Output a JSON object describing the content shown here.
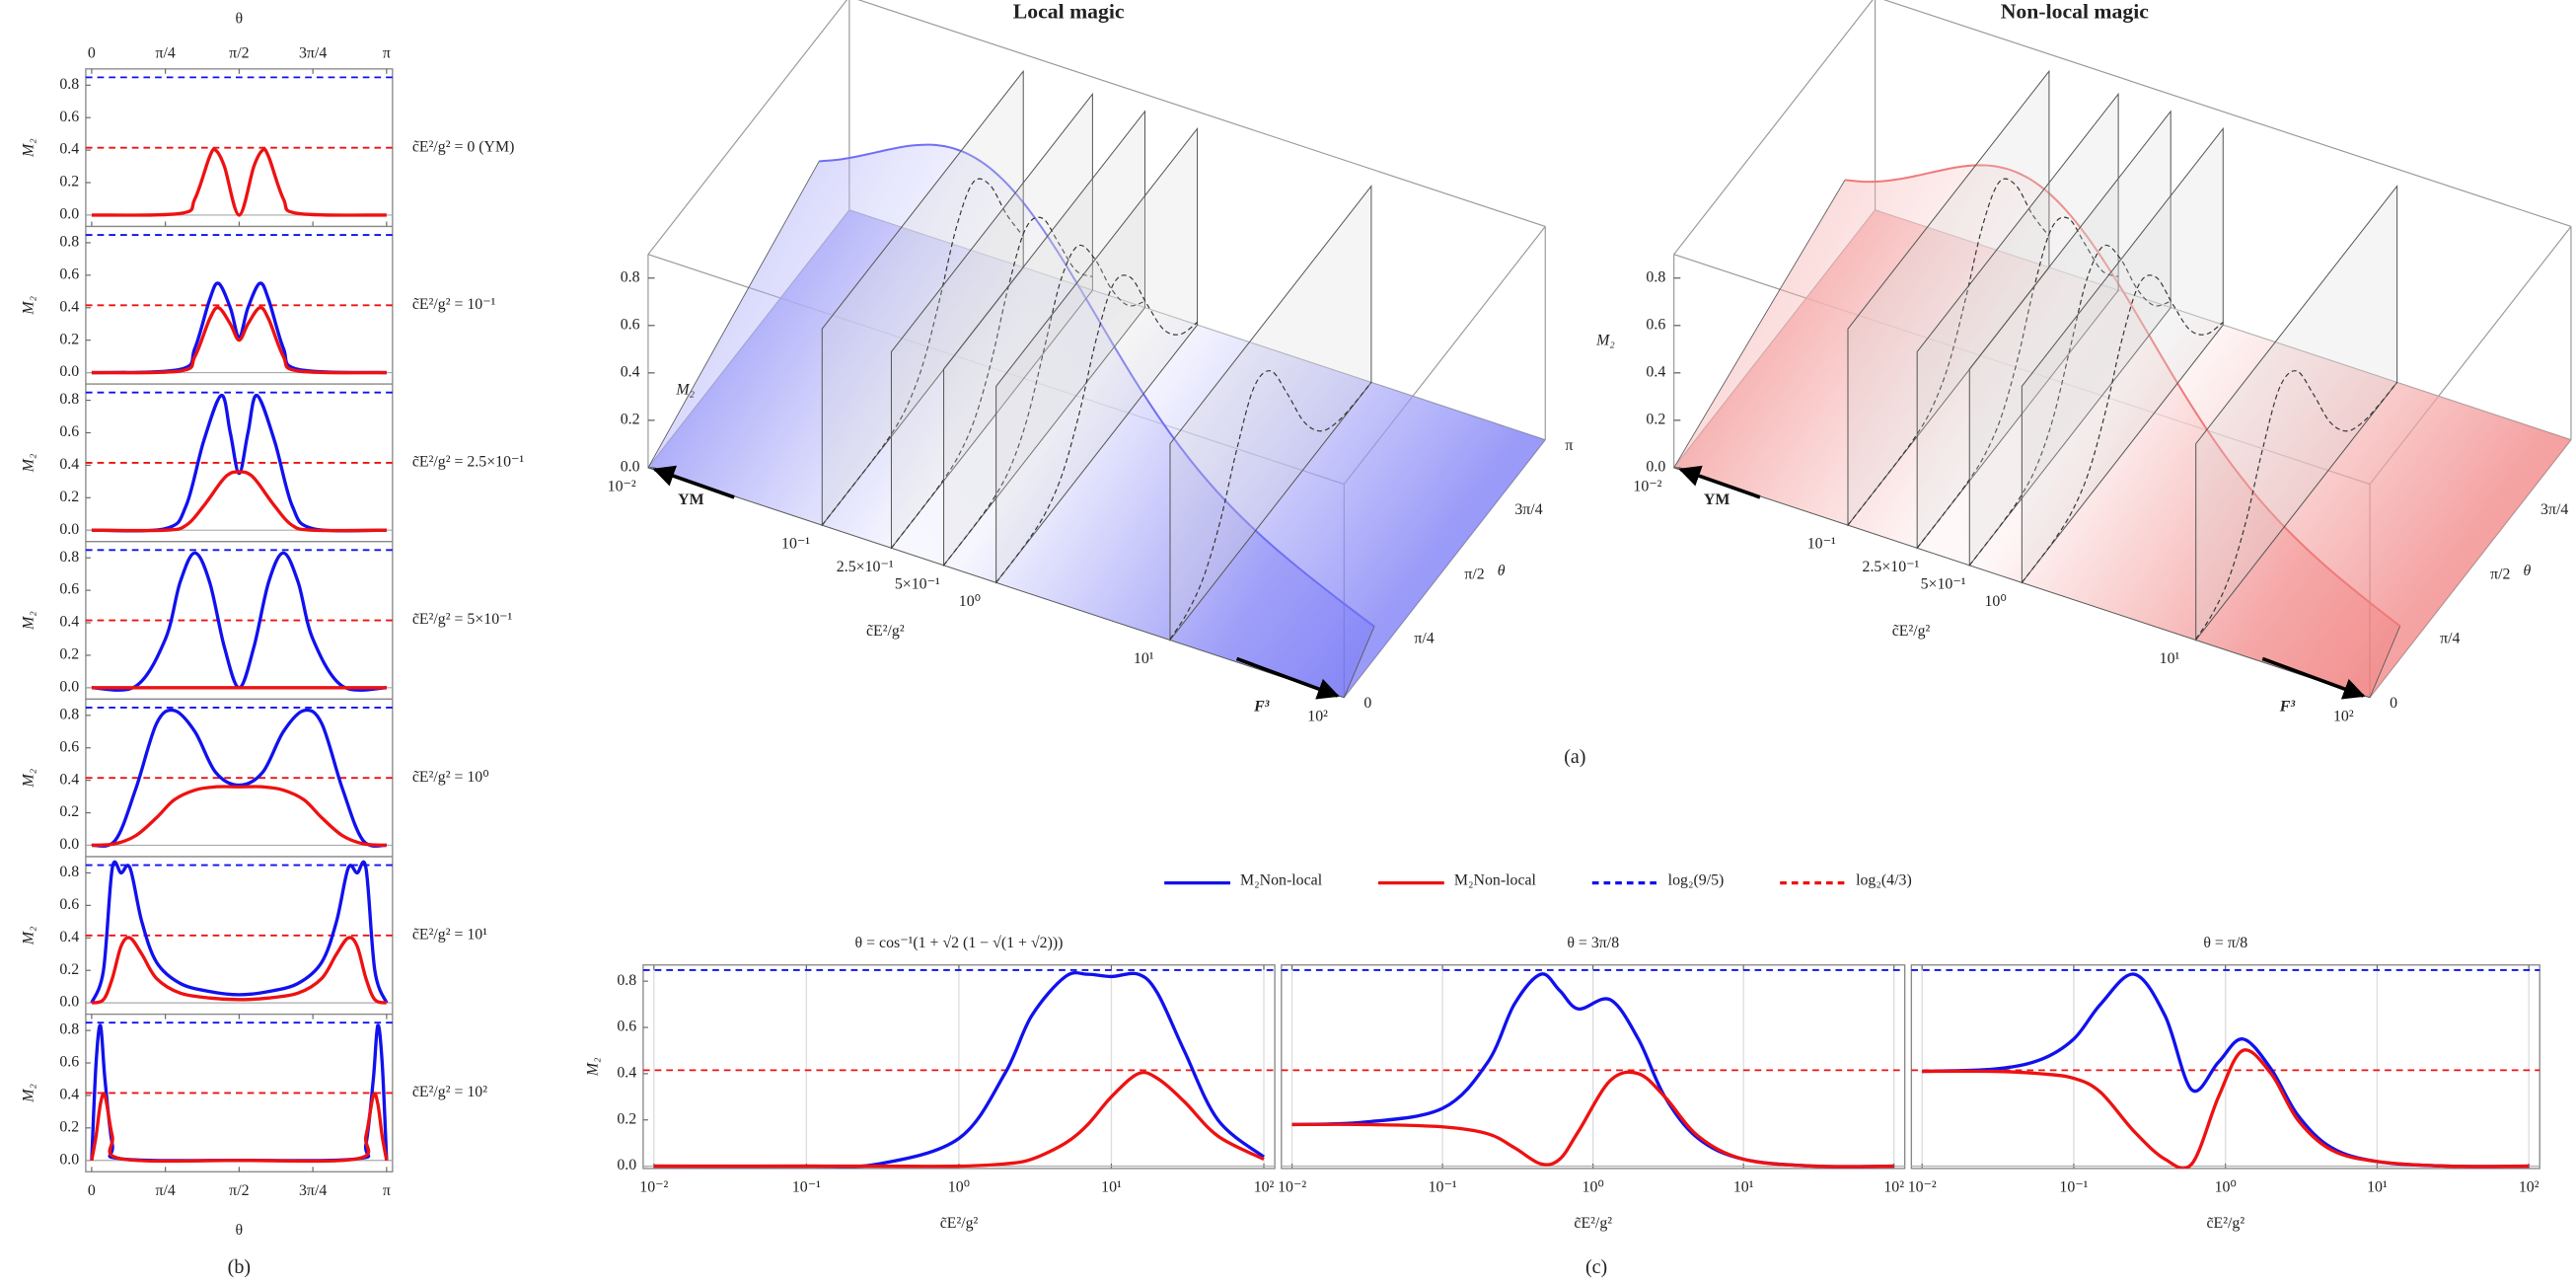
{
  "captions": {
    "a": "(a)",
    "b": "(b)",
    "c": "(c)"
  },
  "panel_a": {
    "charts": [
      {
        "title": "Local magic",
        "color": "#6f6ff5"
      },
      {
        "title": "Non-local magic",
        "color": "#f07a7a"
      }
    ],
    "zlabel": "M₂",
    "zlim": [
      0,
      0.9
    ],
    "zticks": [
      {
        "value": 0,
        "label": "0.0"
      },
      0.2,
      0.4,
      0.6,
      0.8
    ],
    "xlabel": "c̃E²/g²",
    "xscale": "log",
    "xlim": [
      0.01,
      100
    ],
    "xticks": [
      {
        "value": 0.01,
        "label": "10⁻²"
      },
      {
        "value": 0.1,
        "label": "10⁻¹"
      },
      {
        "value": 0.25,
        "label": "2.5×10⁻¹"
      },
      {
        "value": 0.5,
        "label": "5×10⁻¹"
      },
      {
        "value": 1,
        "label": "10⁰"
      },
      {
        "value": 10,
        "label": "10¹"
      },
      {
        "value": 100,
        "label": "10²"
      }
    ],
    "ylabel": "θ",
    "ylim": [
      0,
      1
    ],
    "yticks": [
      0,
      {
        "value": 0.25,
        "label": "π/4"
      },
      {
        "value": 0.5,
        "label": "π/2"
      },
      {
        "value": 0.75,
        "label": "3π/4"
      },
      {
        "value": 1,
        "label": "π"
      }
    ],
    "arrows": [
      "YM",
      "F³"
    ]
  },
  "legend": [
    {
      "label": "M₂Non-local",
      "color": "#1111ee",
      "style": "solid"
    },
    {
      "label": "M₂Non-local",
      "color": "#ee1111",
      "style": "solid"
    },
    {
      "label": "log₂(9/5)",
      "color": "#1111ee",
      "style": "dashed"
    },
    {
      "label": "log₂(4/3)",
      "color": "#ee1111",
      "style": "dashed"
    }
  ],
  "chart_data": [
    {
      "type": "line",
      "annotation": "c̃E²/g² = 0 (YM)",
      "xaxis": "top",
      "xlabel": "θ",
      "xlim": [
        -0.02,
        1.02
      ],
      "xticks": [
        0,
        {
          "value": 0.25,
          "label": "π/4"
        },
        {
          "value": 0.5,
          "label": "π/2"
        },
        {
          "value": 0.75,
          "label": "3π/4"
        },
        {
          "value": 1,
          "label": "π"
        }
      ],
      "ylabel": "M₂",
      "ylim": [
        -0.07,
        0.9
      ],
      "yticks": [
        {
          "value": 0,
          "label": "0.0"
        },
        0.2,
        0.4,
        0.6,
        0.8
      ],
      "hlines": [
        {
          "value": 0.848,
          "color": "#1111ee"
        },
        {
          "value": 0.415,
          "color": "#ee1111"
        }
      ],
      "x": [
        0,
        0.3,
        0.35,
        0.4,
        0.42,
        0.45,
        0.5,
        0.55,
        0.58,
        0.6,
        0.65,
        0.7,
        1
      ],
      "series": [
        {
          "color": "#ee1111",
          "values": [
            0,
            0.01,
            0.1,
            0.36,
            0.4,
            0.3,
            0,
            0.3,
            0.4,
            0.36,
            0.1,
            0.01,
            0
          ]
        }
      ]
    },
    {
      "type": "line",
      "annotation": "c̃E²/g² = 10⁻¹",
      "xlim": [
        -0.02,
        1.02
      ],
      "ylabel": "M₂",
      "ylim": [
        -0.07,
        0.9
      ],
      "yticks": [
        {
          "value": 0,
          "label": "0.0"
        },
        0.2,
        0.4,
        0.6,
        0.8
      ],
      "hlines": [
        {
          "value": 0.848,
          "color": "#1111ee"
        },
        {
          "value": 0.415,
          "color": "#ee1111"
        }
      ],
      "x": [
        0,
        0.3,
        0.35,
        0.4,
        0.43,
        0.47,
        0.5,
        0.53,
        0.57,
        0.6,
        0.65,
        0.7,
        1
      ],
      "series": [
        {
          "color": "#1111ee",
          "values": [
            0,
            0.02,
            0.15,
            0.45,
            0.55,
            0.4,
            0.22,
            0.4,
            0.55,
            0.45,
            0.15,
            0.02,
            0
          ]
        },
        {
          "color": "#ee1111",
          "values": [
            0,
            0.01,
            0.1,
            0.33,
            0.4,
            0.3,
            0.2,
            0.3,
            0.4,
            0.33,
            0.1,
            0.01,
            0
          ]
        }
      ]
    },
    {
      "type": "line",
      "annotation": "c̃E²/g² = 2.5×10⁻¹",
      "xlim": [
        -0.02,
        1.02
      ],
      "ylabel": "M₂",
      "ylim": [
        -0.07,
        0.9
      ],
      "yticks": [
        {
          "value": 0,
          "label": "0.0"
        },
        0.2,
        0.4,
        0.6,
        0.8
      ],
      "hlines": [
        {
          "value": 0.848,
          "color": "#1111ee"
        },
        {
          "value": 0.415,
          "color": "#ee1111"
        }
      ],
      "x": [
        0,
        0.25,
        0.32,
        0.38,
        0.44,
        0.47,
        0.5,
        0.53,
        0.56,
        0.62,
        0.68,
        0.75,
        1
      ],
      "series": [
        {
          "color": "#1111ee",
          "values": [
            0,
            0.01,
            0.15,
            0.55,
            0.83,
            0.6,
            0.35,
            0.6,
            0.83,
            0.55,
            0.15,
            0.01,
            0
          ]
        },
        {
          "color": "#ee1111",
          "values": [
            0,
            0,
            0.03,
            0.15,
            0.3,
            0.35,
            0.36,
            0.35,
            0.3,
            0.15,
            0.03,
            0,
            0
          ]
        }
      ]
    },
    {
      "type": "line",
      "annotation": "c̃E²/g² = 5×10⁻¹",
      "xlim": [
        -0.02,
        1.02
      ],
      "ylabel": "M₂",
      "ylim": [
        -0.07,
        0.9
      ],
      "yticks": [
        {
          "value": 0,
          "label": "0.0"
        },
        0.2,
        0.4,
        0.6,
        0.8
      ],
      "hlines": [
        {
          "value": 0.848,
          "color": "#1111ee"
        },
        {
          "value": 0.415,
          "color": "#ee1111"
        }
      ],
      "x": [
        0,
        0.15,
        0.25,
        0.3,
        0.35,
        0.4,
        0.45,
        0.5,
        0.55,
        0.6,
        0.65,
        0.7,
        0.75,
        0.85,
        1
      ],
      "series": [
        {
          "color": "#1111ee",
          "values": [
            0,
            0.01,
            0.3,
            0.65,
            0.83,
            0.65,
            0.25,
            0,
            0.25,
            0.65,
            0.83,
            0.65,
            0.3,
            0.01,
            0
          ]
        },
        {
          "color": "#ee1111",
          "values": [
            0,
            0,
            0,
            0,
            0,
            0,
            0,
            0,
            0,
            0,
            0,
            0,
            0,
            0,
            0
          ]
        }
      ]
    },
    {
      "type": "line",
      "annotation": "c̃E²/g² = 10⁰",
      "xlim": [
        -0.02,
        1.02
      ],
      "ylabel": "M₂",
      "ylim": [
        -0.07,
        0.9
      ],
      "yticks": [
        {
          "value": 0,
          "label": "0.0"
        },
        0.2,
        0.4,
        0.6,
        0.8
      ],
      "hlines": [
        {
          "value": 0.848,
          "color": "#1111ee"
        },
        {
          "value": 0.415,
          "color": "#ee1111"
        }
      ],
      "x": [
        0,
        0.08,
        0.15,
        0.22,
        0.28,
        0.35,
        0.42,
        0.5,
        0.58,
        0.65,
        0.72,
        0.78,
        0.85,
        0.92,
        1
      ],
      "series": [
        {
          "color": "#1111ee",
          "values": [
            0,
            0.03,
            0.35,
            0.75,
            0.83,
            0.7,
            0.45,
            0.37,
            0.45,
            0.7,
            0.83,
            0.75,
            0.35,
            0.03,
            0
          ]
        },
        {
          "color": "#ee1111",
          "values": [
            0,
            0.01,
            0.06,
            0.17,
            0.28,
            0.34,
            0.36,
            0.36,
            0.36,
            0.34,
            0.28,
            0.17,
            0.06,
            0.01,
            0
          ]
        }
      ]
    },
    {
      "type": "line",
      "annotation": "c̃E²/g² = 10¹",
      "xlim": [
        -0.02,
        1.02
      ],
      "ylabel": "M₂",
      "ylim": [
        -0.07,
        0.9
      ],
      "yticks": [
        {
          "value": 0,
          "label": "0.0"
        },
        0.2,
        0.4,
        0.6,
        0.8
      ],
      "hlines": [
        {
          "value": 0.848,
          "color": "#1111ee"
        },
        {
          "value": 0.415,
          "color": "#ee1111"
        }
      ],
      "x": [
        0,
        0.04,
        0.07,
        0.1,
        0.13,
        0.17,
        0.22,
        0.3,
        0.4,
        0.5,
        0.6,
        0.7,
        0.78,
        0.83,
        0.87,
        0.9,
        0.93,
        0.96,
        1
      ],
      "series": [
        {
          "color": "#1111ee",
          "values": [
            0,
            0.2,
            0.83,
            0.8,
            0.83,
            0.5,
            0.25,
            0.12,
            0.07,
            0.05,
            0.07,
            0.12,
            0.25,
            0.5,
            0.83,
            0.8,
            0.83,
            0.2,
            0
          ]
        },
        {
          "color": "#ee1111",
          "values": [
            0,
            0.02,
            0.15,
            0.35,
            0.4,
            0.3,
            0.15,
            0.06,
            0.03,
            0.02,
            0.03,
            0.06,
            0.15,
            0.3,
            0.4,
            0.35,
            0.15,
            0.02,
            0
          ]
        }
      ]
    },
    {
      "type": "line",
      "annotation": "c̃E²/g² = 10²",
      "xaxis": "bottom",
      "xlabel": "θ",
      "xlim": [
        -0.02,
        1.02
      ],
      "xticks": [
        0,
        {
          "value": 0.25,
          "label": "π/4"
        },
        {
          "value": 0.5,
          "label": "π/2"
        },
        {
          "value": 0.75,
          "label": "3π/4"
        },
        {
          "value": 1,
          "label": "π"
        }
      ],
      "ylabel": "M₂",
      "ylim": [
        -0.07,
        0.9
      ],
      "yticks": [
        {
          "value": 0,
          "label": "0.0"
        },
        0.2,
        0.4,
        0.6,
        0.8
      ],
      "hlines": [
        {
          "value": 0.848,
          "color": "#1111ee"
        },
        {
          "value": 0.415,
          "color": "#ee1111"
        }
      ],
      "x": [
        0,
        0.015,
        0.03,
        0.045,
        0.07,
        0.1,
        0.5,
        0.9,
        0.93,
        0.955,
        0.97,
        0.985,
        1
      ],
      "series": [
        {
          "color": "#1111ee",
          "values": [
            0,
            0.6,
            0.83,
            0.5,
            0.1,
            0.01,
            0,
            0.01,
            0.1,
            0.5,
            0.83,
            0.6,
            0
          ]
        },
        {
          "color": "#ee1111",
          "values": [
            0,
            0.15,
            0.35,
            0.4,
            0.15,
            0.01,
            0,
            0.01,
            0.15,
            0.4,
            0.35,
            0.15,
            0
          ]
        }
      ]
    },
    {
      "type": "line",
      "title": "θ = cos⁻¹(1 + √2 (1 − √(1 + √2)))",
      "xscale": "log",
      "xlim": [
        0.0085,
        118
      ],
      "grid": true,
      "xticks": [
        {
          "value": 0.01,
          "label": "10⁻²"
        },
        {
          "value": 0.1,
          "label": "10⁻¹"
        },
        {
          "value": 1,
          "label": "10⁰"
        },
        {
          "value": 10,
          "label": "10¹"
        },
        {
          "value": 100,
          "label": "10²"
        }
      ],
      "xlabel": "c̃E²/g²",
      "ylabel": "M₂",
      "ylim": [
        -0.01,
        0.87
      ],
      "yticks": [
        {
          "value": 0,
          "label": "0.0"
        },
        0.2,
        0.4,
        0.6,
        0.8
      ],
      "hlines": [
        {
          "value": 0.848,
          "color": "#1111ee"
        },
        {
          "value": 0.415,
          "color": "#ee1111"
        }
      ],
      "x": [
        0.01,
        0.1,
        0.3,
        1,
        2,
        3,
        5,
        7,
        10,
        15,
        20,
        30,
        50,
        100
      ],
      "series": [
        {
          "color": "#1111ee",
          "values": [
            0,
            0,
            0.01,
            0.12,
            0.4,
            0.65,
            0.82,
            0.83,
            0.82,
            0.83,
            0.75,
            0.5,
            0.2,
            0.04
          ]
        },
        {
          "color": "#ee1111",
          "values": [
            0,
            0,
            0,
            0,
            0.01,
            0.03,
            0.1,
            0.18,
            0.3,
            0.4,
            0.38,
            0.28,
            0.13,
            0.03
          ]
        }
      ]
    },
    {
      "type": "line",
      "title": "θ = 3π/8",
      "xscale": "log",
      "xlim": [
        0.0085,
        118
      ],
      "grid": true,
      "xticks": [
        {
          "value": 0.01,
          "label": "10⁻²"
        },
        {
          "value": 0.1,
          "label": "10⁻¹"
        },
        {
          "value": 1,
          "label": "10⁰"
        },
        {
          "value": 10,
          "label": "10¹"
        },
        {
          "value": 100,
          "label": "10²"
        }
      ],
      "xlabel": "c̃E²/g²",
      "ylim": [
        -0.01,
        0.87
      ],
      "hlines": [
        {
          "value": 0.848,
          "color": "#1111ee"
        },
        {
          "value": 0.415,
          "color": "#ee1111"
        }
      ],
      "x": [
        0.01,
        0.03,
        0.1,
        0.2,
        0.3,
        0.45,
        0.6,
        0.8,
        1.3,
        2,
        3,
        5,
        10,
        30,
        100
      ],
      "series": [
        {
          "color": "#1111ee",
          "values": [
            0.18,
            0.19,
            0.25,
            0.45,
            0.7,
            0.83,
            0.76,
            0.68,
            0.72,
            0.55,
            0.3,
            0.12,
            0.03,
            0,
            0
          ]
        },
        {
          "color": "#ee1111",
          "values": [
            0.18,
            0.18,
            0.17,
            0.14,
            0.08,
            0.01,
            0.03,
            0.15,
            0.37,
            0.4,
            0.3,
            0.13,
            0.03,
            0,
            0
          ]
        }
      ]
    },
    {
      "type": "line",
      "title": "θ = π/8",
      "xscale": "log",
      "xlim": [
        0.0085,
        118
      ],
      "grid": true,
      "xticks": [
        {
          "value": 0.01,
          "label": "10⁻²"
        },
        {
          "value": 0.1,
          "label": "10⁻¹"
        },
        {
          "value": 1,
          "label": "10⁰"
        },
        {
          "value": 10,
          "label": "10¹"
        },
        {
          "value": 100,
          "label": "10²"
        }
      ],
      "xlabel": "c̃E²/g²",
      "ylim": [
        -0.01,
        0.87
      ],
      "hlines": [
        {
          "value": 0.848,
          "color": "#1111ee"
        },
        {
          "value": 0.415,
          "color": "#ee1111"
        }
      ],
      "x": [
        0.01,
        0.03,
        0.06,
        0.1,
        0.15,
        0.25,
        0.4,
        0.6,
        0.9,
        1.3,
        2,
        3,
        5,
        10,
        30,
        100
      ],
      "series": [
        {
          "color": "#1111ee",
          "values": [
            0.41,
            0.42,
            0.46,
            0.55,
            0.7,
            0.83,
            0.65,
            0.33,
            0.45,
            0.55,
            0.42,
            0.22,
            0.08,
            0.02,
            0,
            0
          ]
        },
        {
          "color": "#ee1111",
          "values": [
            0.41,
            0.41,
            0.4,
            0.38,
            0.32,
            0.15,
            0.03,
            0.01,
            0.3,
            0.5,
            0.4,
            0.2,
            0.07,
            0.02,
            0,
            0
          ]
        }
      ]
    }
  ]
}
